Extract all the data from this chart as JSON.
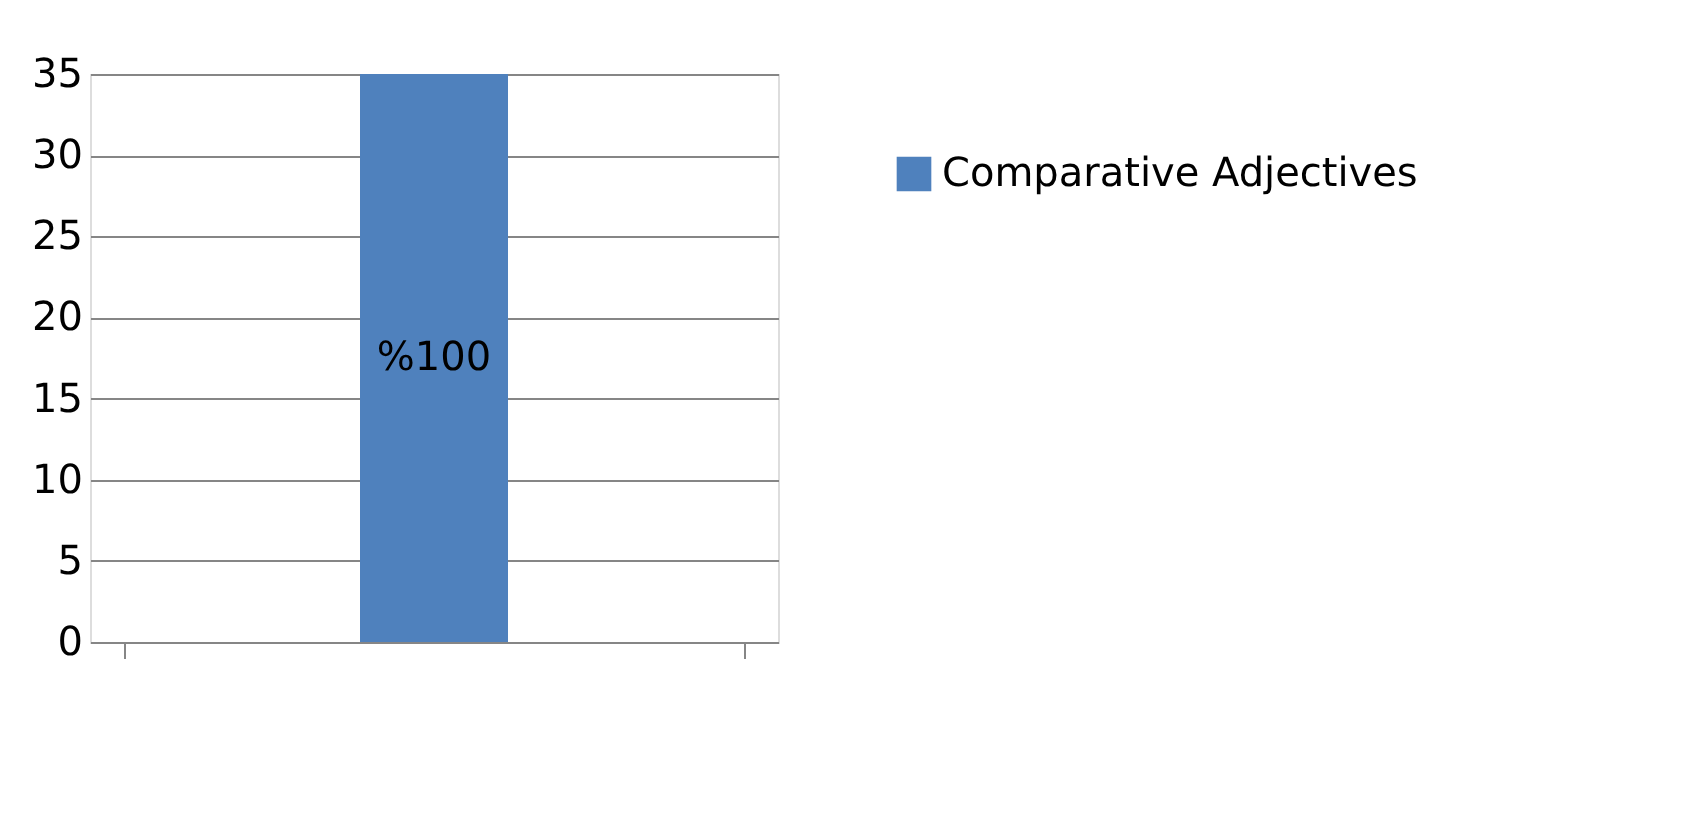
{
  "chart_data": {
    "type": "bar",
    "categories": [
      null
    ],
    "series": [
      {
        "name": "Comparative Adjectives",
        "color": "#4f81bd",
        "values": [
          35
        ]
      }
    ],
    "value_labels": [
      "%100"
    ],
    "ylim": [
      0,
      35
    ],
    "yticks": [
      0,
      5,
      10,
      15,
      20,
      25,
      30,
      35
    ],
    "grid": "y",
    "legend": "right"
  }
}
